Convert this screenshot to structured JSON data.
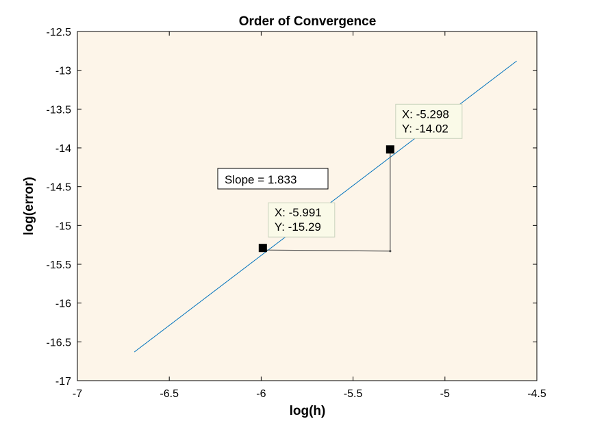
{
  "chart_data": {
    "type": "line",
    "title": "Order of Convergence",
    "xlabel": "log(h)",
    "ylabel": "log(error)",
    "xlim": [
      -7,
      -4.5
    ],
    "ylim": [
      -17,
      -12.5
    ],
    "xticks": [
      "-7",
      "-6.5",
      "-6",
      "-5.5",
      "-5",
      "-4.5"
    ],
    "yticks": [
      "-12.5",
      "-13",
      "-13.5",
      "-14",
      "-14.5",
      "-15",
      "-15.5",
      "-16",
      "-16.5",
      "-17"
    ],
    "grid": false,
    "series": [
      {
        "x": [
          -6.69,
          -4.61
        ],
        "y": [
          -16.63,
          -12.88
        ],
        "color": "#0072bd"
      }
    ],
    "markers": [
      {
        "x": -5.991,
        "y": -15.29
      },
      {
        "x": -5.298,
        "y": -14.02
      }
    ],
    "datatips": [
      {
        "x_text": "X: -5.991",
        "y_text": "Y: -15.29",
        "x": -5.991,
        "y": -15.29
      },
      {
        "x_text": "X: -5.298",
        "y_text": "Y: -14.02",
        "x": -5.298,
        "y": -14.02
      }
    ],
    "slope_triangle": {
      "corner": {
        "x": -5.298,
        "y": -15.33
      }
    },
    "annotation": {
      "text": "Slope = 1.833"
    },
    "colors": {
      "plot_background": "#fdf5e9",
      "line": "#0072bd",
      "tip_background": "#fafae8",
      "tip_border": "#c8d2bc",
      "triangle": "#505050"
    }
  }
}
